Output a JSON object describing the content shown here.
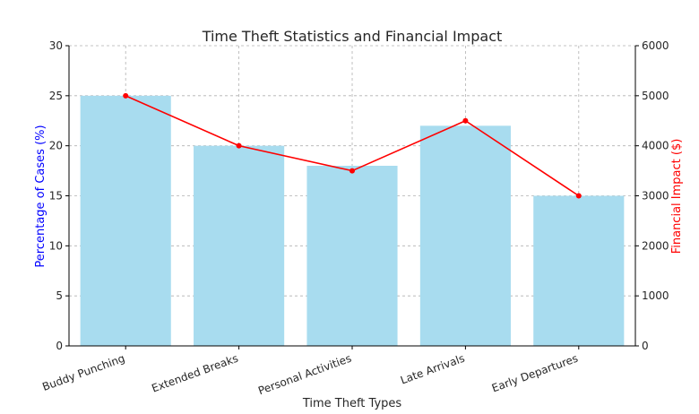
{
  "chart_data": {
    "type": "bar",
    "title": "Time Theft Statistics and Financial Impact",
    "xlabel": "Time Theft Types",
    "ylabel": "Percentage of Cases (%)",
    "y2label": "Financial Impact ($)",
    "categories": [
      "Buddy Punching",
      "Extended Breaks",
      "Personal Activities",
      "Late Arrivals",
      "Early Departures"
    ],
    "series": [
      {
        "name": "",
        "type": "bar",
        "axis": "left",
        "values": [
          25,
          20,
          18,
          22,
          15
        ]
      },
      {
        "name": "",
        "type": "line",
        "axis": "right",
        "values": [
          5000,
          4000,
          3500,
          4500,
          3000
        ]
      }
    ],
    "ylim": [
      0,
      30
    ],
    "y2lim": [
      0,
      6000
    ],
    "yticks": [
      "0",
      "5",
      "10",
      "15",
      "20",
      "25",
      "30"
    ],
    "y2ticks": [
      "0",
      "1000",
      "2000",
      "3000",
      "4000",
      "5000",
      "6000"
    ],
    "grid": true,
    "colors": {
      "bar": "#a8dcef",
      "line": "#ff0000",
      "ylabel": "#0000ff",
      "y2label": "#ff0000",
      "grid": "#b0b0b0",
      "axis": "#000000",
      "text": "#262626"
    }
  }
}
